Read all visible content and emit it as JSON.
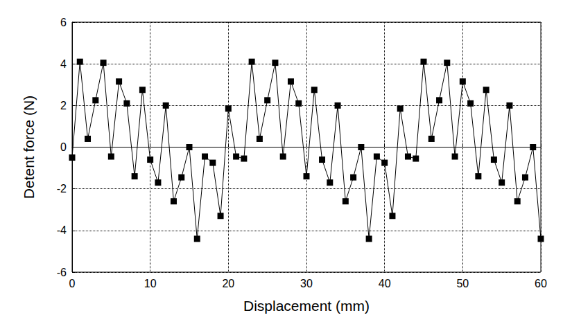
{
  "chart_data": {
    "type": "line",
    "x_label": "Displacement (mm)",
    "y_label": "Detent force (N)",
    "x": [
      0,
      1,
      2,
      3,
      4,
      5,
      6,
      7,
      8,
      9,
      10,
      11,
      12,
      13,
      14,
      15,
      16,
      17,
      18,
      19,
      20,
      21,
      22,
      23,
      24,
      25,
      26,
      27,
      28,
      29,
      30,
      31,
      32,
      33,
      34,
      35,
      36,
      37,
      38,
      39,
      40,
      41,
      42,
      43,
      44,
      45,
      46,
      47,
      48,
      49,
      50,
      51,
      52,
      53,
      54,
      55,
      56,
      57,
      58,
      59,
      60
    ],
    "values": [
      -0.5,
      4.1,
      0.4,
      2.25,
      4.05,
      -0.45,
      3.15,
      2.1,
      -1.4,
      2.75,
      -0.6,
      -1.7,
      2.0,
      -2.6,
      -1.45,
      0.0,
      -4.4,
      -0.45,
      -0.75,
      -3.3,
      1.85,
      -0.45,
      -0.55,
      4.1,
      0.4,
      2.25,
      4.05,
      -0.45,
      3.15,
      2.1,
      -1.4,
      2.75,
      -0.6,
      -1.7,
      2.0,
      -2.6,
      -1.45,
      0.0,
      -4.4,
      -0.45,
      -0.75,
      -3.3,
      1.85,
      -0.45,
      -0.55,
      4.1,
      0.4,
      2.25,
      4.05,
      -0.45,
      3.15,
      2.1,
      -1.4,
      2.75,
      -0.6,
      -1.7,
      2.0,
      -2.6,
      -1.45,
      0.0,
      -4.4
    ],
    "color": "#000000",
    "marker": "square",
    "line_style": "solid",
    "xlim": [
      0,
      60
    ],
    "xticks": [
      0,
      10,
      20,
      30,
      40,
      50,
      60
    ],
    "ylim": [
      -6,
      6
    ],
    "yticks": [
      -6,
      -4,
      -2,
      0,
      2,
      4,
      6
    ],
    "grid": true
  }
}
